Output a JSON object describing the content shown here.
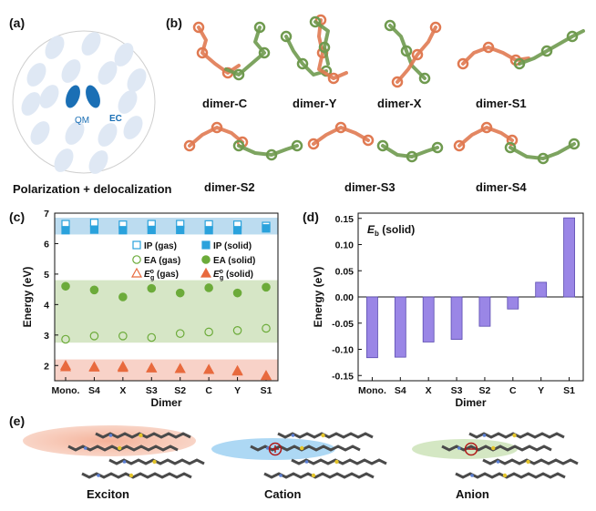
{
  "panels": {
    "a": {
      "label": "(a)",
      "qm_label": "QM",
      "ec_label": "EC",
      "caption": "Polarization + delocalization"
    },
    "b": {
      "label": "(b)",
      "dimers": [
        "dimer-C",
        "dimer-Y",
        "dimer-X",
        "dimer-S1",
        "dimer-S2",
        "dimer-S3",
        "dimer-S4"
      ]
    },
    "c": {
      "label": "(c)"
    },
    "d": {
      "label": "(d)"
    },
    "e": {
      "label": "(e)",
      "captions": [
        "Exciton",
        "Cation",
        "Anion"
      ]
    }
  },
  "colors": {
    "orange": "#e07a52",
    "green": "#6f9a4f",
    "ip": "#2aa2dc",
    "ea": "#6cab3a",
    "eg": "#e86a3e",
    "bar": "#9a86e6"
  },
  "chart_data": [
    {
      "type": "scatter",
      "panel": "(c)",
      "xlabel": "Dimer",
      "ylabel": "Energy (eV)",
      "ylim": [
        1.5,
        7
      ],
      "yticks": [
        2,
        3,
        4,
        5,
        6,
        7
      ],
      "categories": [
        "Mono.",
        "S4",
        "X",
        "S3",
        "S2",
        "C",
        "Y",
        "S1"
      ],
      "bands": [
        {
          "color": "#bcdcf0",
          "y0": 6.3,
          "y1": 6.85
        },
        {
          "color": "#d6e6c6",
          "y0": 2.75,
          "y1": 4.8
        },
        {
          "color": "#f8d2c8",
          "y0": 1.5,
          "y1": 2.2
        }
      ],
      "series": [
        {
          "name": "IP  (gas)",
          "marker": "square-open",
          "values": [
            6.64,
            6.68,
            6.62,
            6.64,
            6.64,
            6.63,
            6.62,
            6.58
          ]
        },
        {
          "name": "IP  (solid)",
          "marker": "square-filled",
          "values": [
            6.44,
            6.46,
            6.44,
            6.45,
            6.45,
            6.44,
            6.44,
            6.5
          ]
        },
        {
          "name": "EA (gas)",
          "marker": "circle-open",
          "values": [
            2.86,
            2.97,
            2.97,
            2.92,
            3.05,
            3.1,
            3.15,
            3.22
          ]
        },
        {
          "name": "EA (solid)",
          "marker": "circle-filled",
          "values": [
            4.6,
            4.48,
            4.25,
            4.53,
            4.38,
            4.55,
            4.38,
            4.57
          ]
        },
        {
          "name": "(gas)",
          "marker": "triangle-open",
          "values": [
            2.0,
            1.96,
            1.97,
            1.92,
            1.9,
            1.87,
            1.83,
            1.67
          ]
        },
        {
          "name": "(solid)",
          "marker": "triangle-filled",
          "values": [
            1.95,
            1.94,
            1.93,
            1.91,
            1.89,
            1.86,
            1.81,
            1.66
          ]
        }
      ],
      "legend": [
        {
          "text": "IP  (gas)",
          "marker": "square-open"
        },
        {
          "text": "IP  (solid)",
          "marker": "square-filled"
        },
        {
          "text": "EA (gas)",
          "marker": "circle-open"
        },
        {
          "text": "EA (solid)",
          "marker": "circle-filled"
        },
        {
          "text": "(gas)",
          "marker": "triangle-open",
          "symbol": "E",
          "sub": "g",
          "sup": "o"
        },
        {
          "text": "(solid)",
          "marker": "triangle-filled",
          "symbol": "E",
          "sub": "g",
          "sup": "o"
        }
      ]
    },
    {
      "type": "bar",
      "panel": "(d)",
      "title_symbol": "E",
      "title_sub": "b",
      "title_rest": " (solid)",
      "xlabel": "Dimer",
      "ylabel": "Energy (eV)",
      "ylim": [
        -0.16,
        0.16
      ],
      "yticks": [
        -0.15,
        -0.1,
        -0.05,
        0.0,
        0.05,
        0.1,
        0.15
      ],
      "ytick_labels": [
        "-0.15",
        "-0.10",
        "-0.05",
        "0.00",
        "0.05",
        "0.10",
        "0.15"
      ],
      "categories": [
        "Mono.",
        "S4",
        "X",
        "S3",
        "S2",
        "C",
        "Y",
        "S1"
      ],
      "values": [
        -0.116,
        -0.115,
        -0.086,
        -0.081,
        -0.056,
        -0.023,
        0.028,
        0.151
      ]
    }
  ]
}
